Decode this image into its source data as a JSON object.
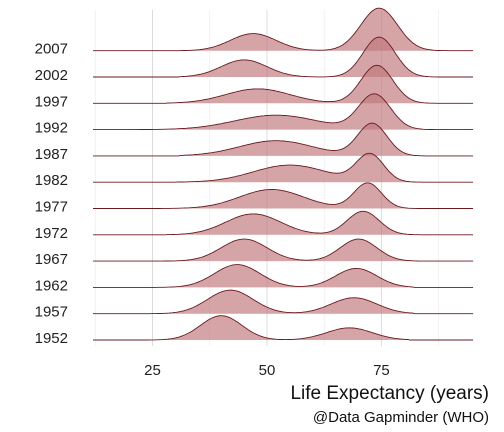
{
  "chart_data": {
    "type": "ridgeline",
    "title": "",
    "xlabel": "Life Expectancy (years)",
    "caption": "@Data Gapminder (WHO)",
    "xlim": [
      12,
      95
    ],
    "x_ticks": [
      25,
      50,
      75
    ],
    "grid": true,
    "colors": {
      "fill": "#c0797e",
      "fill_opacity": 0.68,
      "outline": "#6b1a20"
    },
    "series": [
      {
        "name": "1952",
        "range": [
          29,
          73
        ],
        "peaks": [
          {
            "mu": 40,
            "sd": 4.5,
            "h": 0.64
          },
          {
            "mu": 68,
            "sd": 5,
            "h": 0.32
          }
        ]
      },
      {
        "name": "1957",
        "range": [
          31,
          74
        ],
        "peaks": [
          {
            "mu": 42,
            "sd": 5,
            "h": 0.62
          },
          {
            "mu": 69,
            "sd": 5,
            "h": 0.42
          }
        ]
      },
      {
        "name": "1962",
        "range": [
          32,
          74
        ],
        "peaks": [
          {
            "mu": 43.5,
            "sd": 5,
            "h": 0.6
          },
          {
            "mu": 69.5,
            "sd": 4.5,
            "h": 0.5
          }
        ]
      },
      {
        "name": "1967",
        "range": [
          34,
          75
        ],
        "peaks": [
          {
            "mu": 45,
            "sd": 5,
            "h": 0.58
          },
          {
            "mu": 70,
            "sd": 4,
            "h": 0.58
          }
        ]
      },
      {
        "name": "1972",
        "range": [
          36,
          76
        ],
        "peaks": [
          {
            "mu": 47,
            "sd": 6,
            "h": 0.55
          },
          {
            "mu": 71,
            "sd": 3.5,
            "h": 0.62
          }
        ]
      },
      {
        "name": "1977",
        "range": [
          31,
          77
        ],
        "peaks": [
          {
            "mu": 51,
            "sd": 7,
            "h": 0.5
          },
          {
            "mu": 72,
            "sd": 3,
            "h": 0.67
          }
        ]
      },
      {
        "name": "1982",
        "range": [
          38,
          78
        ],
        "peaks": [
          {
            "mu": 55,
            "sd": 8,
            "h": 0.45
          },
          {
            "mu": 72.5,
            "sd": 3,
            "h": 0.72
          }
        ]
      },
      {
        "name": "1987",
        "range": [
          39,
          78
        ],
        "peaks": [
          {
            "mu": 52,
            "sd": 8,
            "h": 0.4
          },
          {
            "mu": 73,
            "sd": 3.2,
            "h": 0.85
          }
        ]
      },
      {
        "name": "1992",
        "range": [
          23,
          79
        ],
        "peaks": [
          {
            "mu": 52,
            "sd": 9,
            "h": 0.38
          },
          {
            "mu": 73.5,
            "sd": 3.5,
            "h": 0.92
          }
        ]
      },
      {
        "name": "1997",
        "range": [
          36,
          80
        ],
        "peaks": [
          {
            "mu": 48,
            "sd": 7,
            "h": 0.38
          },
          {
            "mu": 74,
            "sd": 3.5,
            "h": 1.0
          }
        ]
      },
      {
        "name": "2002",
        "range": [
          39,
          82
        ],
        "peaks": [
          {
            "mu": 45,
            "sd": 5,
            "h": 0.45
          },
          {
            "mu": 74.5,
            "sd": 3.5,
            "h": 1.05
          }
        ]
      },
      {
        "name": "2007",
        "range": [
          39,
          83
        ],
        "peaks": [
          {
            "mu": 47,
            "sd": 5,
            "h": 0.45
          },
          {
            "mu": 74.5,
            "sd": 4,
            "h": 1.12
          }
        ]
      }
    ]
  }
}
